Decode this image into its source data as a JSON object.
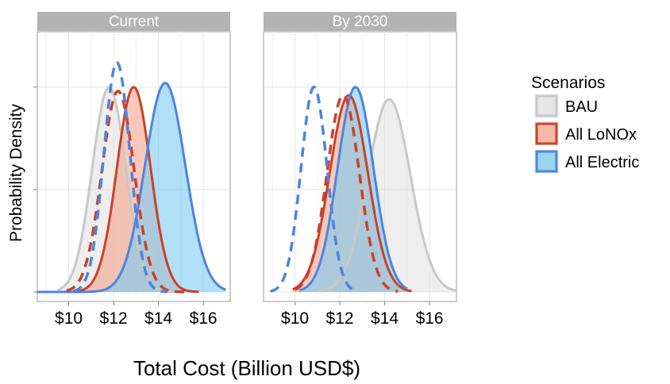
{
  "chart_data": {
    "type": "area",
    "xlabel": "Total Cost (Billion USD$)",
    "ylabel": "Probability Density",
    "x_ticks": [
      "$10",
      "$12",
      "$14",
      "$16"
    ],
    "x_tick_values": [
      10,
      12,
      14,
      16
    ],
    "xlim": [
      8.6,
      17.2
    ],
    "ylim": [
      0,
      1.27
    ],
    "grid": true,
    "legend": {
      "title": "Scenarios",
      "position": "right",
      "entries": [
        "BAU",
        "All LoNOx",
        "All Electric"
      ]
    },
    "series_colors": {
      "BAU": {
        "fill": "#e2e2e2",
        "line": "#c8c8c8"
      },
      "All LoNOx": {
        "fill": "#f4a58d",
        "line": "#c9412a"
      },
      "All Electric": {
        "fill": "#7ccbf2",
        "line": "#4c84e0"
      }
    },
    "line_styles": {
      "solid": "distribution",
      "dashed": "alternate distribution"
    },
    "panels": [
      {
        "title": "Current",
        "curves": [
          {
            "series": "BAU",
            "style": "solid",
            "mean": 11.8,
            "sd": 0.75,
            "peak": 1.0,
            "from": 9.5,
            "to": 15.2
          },
          {
            "series": "All LoNOx",
            "style": "solid",
            "mean": 12.9,
            "sd": 0.75,
            "peak": 1.0,
            "from": 10.3,
            "to": 15.8
          },
          {
            "series": "All Electric",
            "style": "solid",
            "mean": 14.3,
            "sd": 0.9,
            "peak": 1.02,
            "from": 8.6,
            "to": 17.0
          },
          {
            "series": "All LoNOx",
            "style": "dashed",
            "mean": 12.2,
            "sd": 0.72,
            "peak": 0.98,
            "from": 9.9,
            "to": 15.2
          },
          {
            "series": "All Electric",
            "style": "dashed",
            "mean": 12.15,
            "sd": 0.58,
            "peak": 1.12,
            "from": 10.2,
            "to": 14.4
          }
        ]
      },
      {
        "title": "By 2030",
        "curves": [
          {
            "series": "BAU",
            "style": "solid",
            "mean": 14.2,
            "sd": 0.95,
            "peak": 0.94,
            "from": 11.0,
            "to": 17.2
          },
          {
            "series": "All LoNOx",
            "style": "solid",
            "mean": 12.4,
            "sd": 0.85,
            "peak": 0.96,
            "from": 9.9,
            "to": 15.2
          },
          {
            "series": "All Electric",
            "style": "solid",
            "mean": 12.7,
            "sd": 0.8,
            "peak": 1.0,
            "from": 10.2,
            "to": 15.0
          },
          {
            "series": "All LoNOx",
            "style": "dashed",
            "mean": 12.15,
            "sd": 0.72,
            "peak": 0.96,
            "from": 10.0,
            "to": 14.6
          },
          {
            "series": "All Electric",
            "style": "dashed",
            "mean": 10.85,
            "sd": 0.58,
            "peak": 1.0,
            "from": 8.9,
            "to": 12.8
          }
        ]
      }
    ]
  }
}
